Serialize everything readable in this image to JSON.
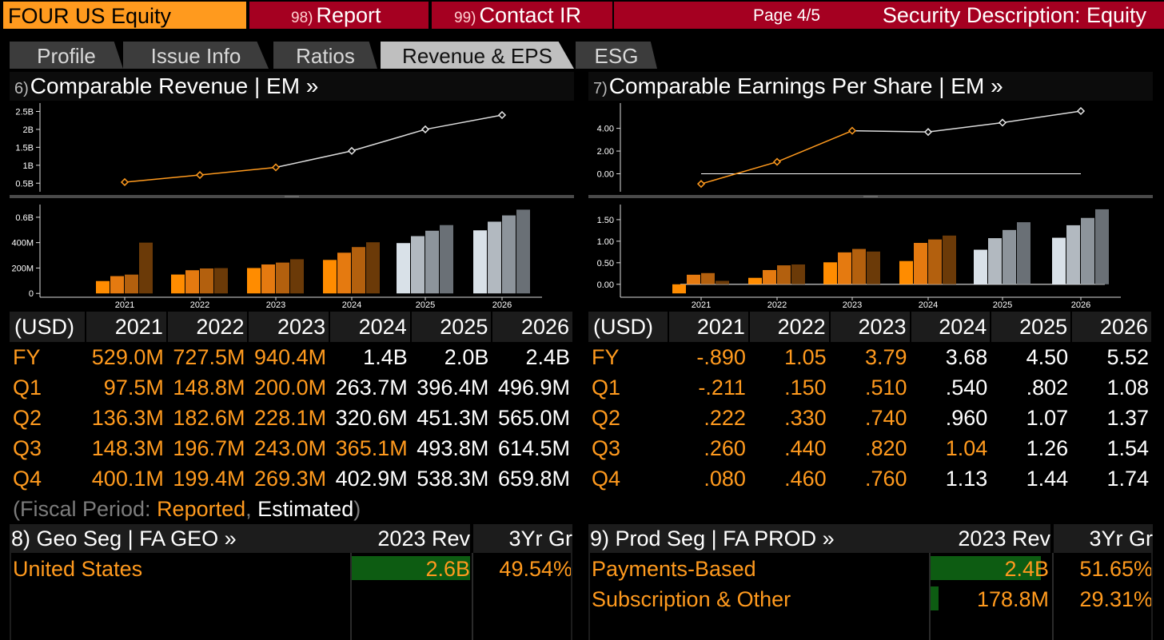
{
  "topbar": {
    "ticker": "FOUR US Equity",
    "report_num": "98)",
    "report_label": "Report",
    "contact_num": "99)",
    "contact_label": "Contact IR",
    "page": "Page 4/5",
    "description": "Security Description: Equity"
  },
  "tabs": [
    "Profile",
    "Issue Info",
    "Ratios",
    "Revenue & EPS",
    "ESG"
  ],
  "active_tab": "Revenue & EPS",
  "revenue_panel": {
    "num": "6)",
    "title": "Comparable Revenue | EM »",
    "header": [
      "(USD)",
      "2021",
      "2022",
      "2023",
      "2024",
      "2025",
      "2026"
    ],
    "rows": [
      {
        "label": "FY",
        "values": [
          "529.0M",
          "727.5M",
          "940.4M",
          "1.4B",
          "2.0B",
          "2.4B"
        ]
      },
      {
        "label": "Q1",
        "values": [
          "97.5M",
          "148.8M",
          "200.0M",
          "263.7M",
          "396.4M",
          "496.9M"
        ]
      },
      {
        "label": "Q2",
        "values": [
          "136.3M",
          "182.6M",
          "228.1M",
          "320.6M",
          "451.3M",
          "565.0M"
        ]
      },
      {
        "label": "Q3",
        "values": [
          "148.3M",
          "196.7M",
          "243.0M",
          "365.1M",
          "493.8M",
          "614.5M"
        ]
      },
      {
        "label": "Q4",
        "values": [
          "400.1M",
          "199.4M",
          "269.3M",
          "402.9M",
          "538.3M",
          "659.8M"
        ]
      }
    ],
    "reported_cols": [
      3,
      3,
      3,
      4,
      3
    ]
  },
  "eps_panel": {
    "num": "7)",
    "title": "Comparable Earnings Per Share | EM »",
    "header": [
      "(USD)",
      "2021",
      "2022",
      "2023",
      "2024",
      "2025",
      "2026"
    ],
    "rows": [
      {
        "label": "FY",
        "values": [
          "-.890",
          "1.05",
          "3.79",
          "3.68",
          "4.50",
          "5.52"
        ]
      },
      {
        "label": "Q1",
        "values": [
          "-.211",
          ".150",
          ".510",
          ".540",
          ".802",
          "1.08"
        ]
      },
      {
        "label": "Q2",
        "values": [
          ".222",
          ".330",
          ".740",
          ".960",
          "1.07",
          "1.37"
        ]
      },
      {
        "label": "Q3",
        "values": [
          ".260",
          ".440",
          ".820",
          "1.04",
          "1.26",
          "1.54"
        ]
      },
      {
        "label": "Q4",
        "values": [
          ".080",
          ".460",
          ".760",
          "1.13",
          "1.44",
          "1.74"
        ]
      }
    ],
    "reported_cols": [
      3,
      3,
      3,
      4,
      3
    ]
  },
  "fiscal_period": {
    "open": "(Fiscal Period: ",
    "reported": "Reported",
    "sep": ", ",
    "estimated": "Estimated",
    "close": ")"
  },
  "geo_seg": {
    "title": "8) Geo Seg | FA GEO »",
    "col1": "2023 Rev",
    "col2": "3Yr Gr",
    "rows": [
      {
        "name": "United States",
        "rev": "2.6B",
        "growth": "49.54%",
        "share": 1.0
      }
    ]
  },
  "prod_seg": {
    "title": "9) Prod Seg | FA PROD »",
    "col1": "2023 Rev",
    "col2": "3Yr Gr",
    "rows": [
      {
        "name": "Payments-Based",
        "rev": "2.4B",
        "growth": "51.65%",
        "share": 0.93
      },
      {
        "name": "Subscription & Other",
        "rev": "178.8M",
        "growth": "29.31%",
        "share": 0.07
      }
    ]
  },
  "colors": {
    "orange": "#ff9a1e",
    "brand_red": "#a50021",
    "seg_bar": "#0d5c12",
    "q_reported": [
      "#ff8c00",
      "#e57a10",
      "#b3600e",
      "#6b3a08"
    ],
    "q_estimated": [
      "#d9e1e8",
      "#b2b9c0",
      "#8d949b",
      "#6a7076"
    ]
  },
  "chart_data": [
    {
      "type": "line",
      "x": [
        "2021",
        "2022",
        "2023",
        "2024",
        "2025",
        "2026"
      ],
      "values": [
        0.529,
        0.7275,
        0.9404,
        1.4,
        2.0,
        2.4
      ],
      "reported_count": 3,
      "yticks": [
        "0.5B",
        "1B",
        "1.5B",
        "2B",
        "2.5B"
      ],
      "ytick_values": [
        0.5,
        1.0,
        1.5,
        2.0,
        2.5
      ],
      "ylim": [
        0.35,
        2.6
      ]
    },
    {
      "type": "bar",
      "x": [
        "2021",
        "2022",
        "2023",
        "2024",
        "2025",
        "2026"
      ],
      "series": [
        {
          "name": "Q1",
          "values": [
            97.5,
            148.8,
            200.0,
            263.7,
            396.4,
            496.9
          ]
        },
        {
          "name": "Q2",
          "values": [
            136.3,
            182.6,
            228.1,
            320.6,
            451.3,
            565.0
          ]
        },
        {
          "name": "Q3",
          "values": [
            148.3,
            196.7,
            243.0,
            365.1,
            493.8,
            614.5
          ]
        },
        {
          "name": "Q4",
          "values": [
            400.1,
            199.4,
            269.3,
            402.9,
            538.3,
            659.8
          ]
        }
      ],
      "reported_count": 3,
      "reported_2024_quarters": 4,
      "yticks": [
        "0",
        "200M",
        "400M",
        "0.6B"
      ],
      "ytick_values": [
        0,
        200,
        400,
        600
      ],
      "ylim": [
        -30,
        700
      ]
    },
    {
      "type": "line",
      "x": [
        "2021",
        "2022",
        "2023",
        "2024",
        "2025",
        "2026"
      ],
      "values": [
        -0.89,
        1.05,
        3.79,
        3.68,
        4.5,
        5.52
      ],
      "reported_count": 3,
      "yticks": [
        "0.00",
        "2.00",
        "4.00"
      ],
      "ytick_values": [
        0,
        2,
        4
      ],
      "ylim": [
        -1.3,
        5.8
      ]
    },
    {
      "type": "bar",
      "x": [
        "2021",
        "2022",
        "2023",
        "2024",
        "2025",
        "2026"
      ],
      "series": [
        {
          "name": "Q1",
          "values": [
            -0.211,
            0.15,
            0.51,
            0.54,
            0.802,
            1.08
          ]
        },
        {
          "name": "Q2",
          "values": [
            0.222,
            0.33,
            0.74,
            0.96,
            1.07,
            1.37
          ]
        },
        {
          "name": "Q3",
          "values": [
            0.26,
            0.44,
            0.82,
            1.04,
            1.26,
            1.54
          ]
        },
        {
          "name": "Q4",
          "values": [
            0.08,
            0.46,
            0.76,
            1.13,
            1.44,
            1.74
          ]
        }
      ],
      "reported_count": 3,
      "reported_2024_quarters": 4,
      "yticks": [
        "0.00",
        "0.50",
        "1.00",
        "1.50"
      ],
      "ytick_values": [
        0,
        0.5,
        1.0,
        1.5
      ],
      "ylim": [
        -0.3,
        1.85
      ]
    }
  ]
}
